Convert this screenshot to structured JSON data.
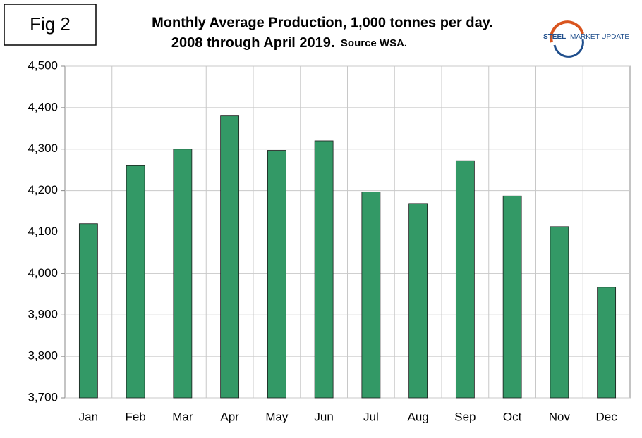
{
  "chart_data": {
    "type": "bar",
    "figure_label": "Fig 2",
    "title": "Monthly Average Production, 1,000 tonnes per day.",
    "subtitle": "2008 through April 2019.",
    "source": "Source WSA.",
    "logo": [
      "STEEL",
      "MARKET UPDATE"
    ],
    "categories": [
      "Jan",
      "Feb",
      "Mar",
      "Apr",
      "May",
      "Jun",
      "Jul",
      "Aug",
      "Sep",
      "Oct",
      "Nov",
      "Dec"
    ],
    "values": [
      4120,
      4260,
      4300,
      4380,
      4297,
      4320,
      4197,
      4169,
      4272,
      4187,
      4113,
      3967
    ],
    "color": "#339966",
    "ylim": [
      3700,
      4500
    ],
    "yticks": [
      {
        "value": 3700,
        "label": "3,700"
      },
      {
        "value": 3800,
        "label": "3,800"
      },
      {
        "value": 3900,
        "label": "3,900"
      },
      {
        "value": 4000,
        "label": "4,000"
      },
      {
        "value": 4100,
        "label": "4,100"
      },
      {
        "value": 4200,
        "label": "4,200"
      },
      {
        "value": 4300,
        "label": "4,300"
      },
      {
        "value": 4400,
        "label": "4,400"
      },
      {
        "value": 4500,
        "label": "4,500"
      }
    ],
    "grid": true
  }
}
